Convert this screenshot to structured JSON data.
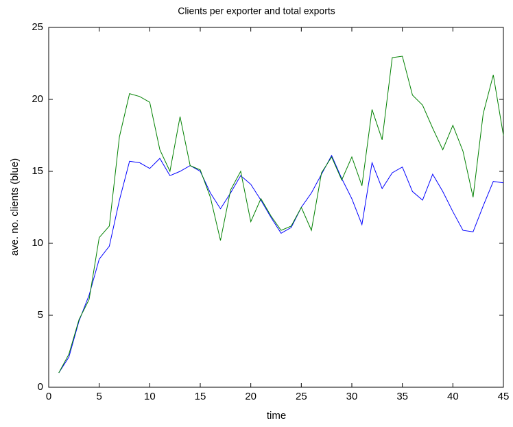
{
  "chart_data": {
    "type": "line",
    "title": "Clients per exporter and total exports",
    "xlabel": "time",
    "ylabel": "ave. no. clients (blue)",
    "x": [
      1,
      2,
      3,
      4,
      5,
      6,
      7,
      8,
      9,
      10,
      11,
      12,
      13,
      14,
      15,
      16,
      17,
      18,
      19,
      20,
      21,
      22,
      23,
      24,
      25,
      26,
      27,
      28,
      29,
      30,
      31,
      32,
      33,
      34,
      35,
      36,
      37,
      38,
      39,
      40,
      41,
      42,
      43,
      44,
      45
    ],
    "series": [
      {
        "color": "#0000ff",
        "values": [
          1.0,
          2.1,
          4.6,
          6.4,
          8.9,
          9.8,
          13.0,
          15.7,
          15.6,
          15.2,
          15.9,
          14.7,
          15.0,
          15.4,
          15.0,
          13.5,
          12.4,
          13.5,
          14.7,
          14.1,
          13.0,
          11.8,
          10.7,
          11.1,
          12.5,
          13.5,
          14.8,
          16.1,
          14.5,
          13.1,
          11.3,
          15.6,
          13.8,
          14.9,
          15.3,
          13.6,
          13.0,
          14.8,
          13.6,
          12.2,
          10.9,
          10.8,
          12.6,
          14.3,
          14.2
        ]
      },
      {
        "color": "#008000",
        "values": [
          1.0,
          2.3,
          4.7,
          6.1,
          10.4,
          11.2,
          17.4,
          20.4,
          20.2,
          19.8,
          16.5,
          15.0,
          18.8,
          15.4,
          15.1,
          13.2,
          10.2,
          13.7,
          15.0,
          11.5,
          13.1,
          11.9,
          10.9,
          11.2,
          12.5,
          10.9,
          14.9,
          16.0,
          14.4,
          16.0,
          14.0,
          19.3,
          17.2,
          22.9,
          23.0,
          20.3,
          19.6,
          18.0,
          16.5,
          18.2,
          16.4,
          13.2,
          19.0,
          21.7,
          17.5
        ]
      }
    ],
    "xlim": [
      0,
      45
    ],
    "xticks": [
      0,
      5,
      10,
      15,
      20,
      25,
      30,
      35,
      40,
      45
    ],
    "ylim": [
      0,
      25
    ],
    "yticks": [
      0,
      5,
      10,
      15,
      20,
      25
    ]
  }
}
